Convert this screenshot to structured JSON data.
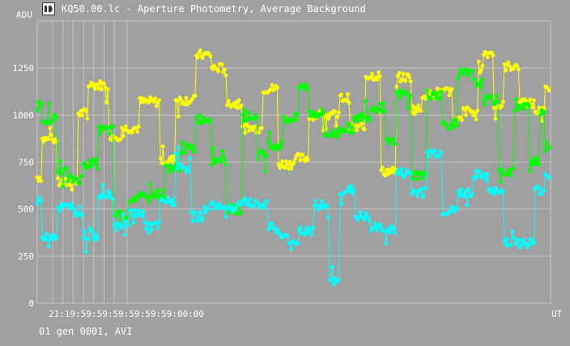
{
  "window": {
    "title": "KQ50.00.lc - Aperture Photometry, Average Background",
    "footer": "01 gen 0001, AVI"
  },
  "chart_data": {
    "type": "line",
    "title": "KQ50.00.lc - Aperture Photometry, Average Background",
    "ylabel": "ADU",
    "xlabel": "UT",
    "ylim": [
      0,
      1500
    ],
    "yticks": [
      0,
      250,
      500,
      750,
      1000,
      1250
    ],
    "x_tick_labels_overlapping": "21:19:59:59:59:59:59:59:00:00",
    "grid": true,
    "background": "#a0a0a0",
    "series": [
      {
        "color": "#ffff00",
        "segments": [
          [
            0,
            670
          ],
          [
            1,
            870
          ],
          [
            4,
            640
          ],
          [
            8,
            1010
          ],
          [
            10,
            1160
          ],
          [
            14,
            890
          ],
          [
            17,
            930
          ],
          [
            20,
            1070
          ],
          [
            24,
            760
          ],
          [
            27,
            1080
          ],
          [
            31,
            1320
          ],
          [
            34,
            1250
          ],
          [
            37,
            1060
          ],
          [
            40,
            930
          ],
          [
            44,
            1140
          ],
          [
            47,
            740
          ],
          [
            50,
            770
          ],
          [
            53,
            1000
          ],
          [
            56,
            1000
          ],
          [
            59,
            1090
          ],
          [
            61,
            930
          ],
          [
            64,
            1210
          ],
          [
            67,
            700
          ],
          [
            70,
            1200
          ],
          [
            73,
            1030
          ],
          [
            75,
            1110
          ],
          [
            78,
            1120
          ],
          [
            81,
            970
          ],
          [
            83,
            1020
          ],
          [
            85,
            1000
          ],
          [
            86,
            1250
          ],
          [
            87,
            1330
          ],
          [
            89,
            1050
          ],
          [
            91,
            1260
          ],
          [
            94,
            1060
          ],
          [
            97,
            1020
          ],
          [
            99,
            1130
          ]
        ]
      },
      {
        "color": "#00ff00",
        "segments": [
          [
            0,
            1050
          ],
          [
            1,
            980
          ],
          [
            4,
            700
          ],
          [
            6,
            660
          ],
          [
            9,
            740
          ],
          [
            12,
            920
          ],
          [
            15,
            470
          ],
          [
            18,
            560
          ],
          [
            22,
            580
          ],
          [
            25,
            720
          ],
          [
            28,
            820
          ],
          [
            31,
            980
          ],
          [
            34,
            760
          ],
          [
            37,
            500
          ],
          [
            40,
            990
          ],
          [
            43,
            790
          ],
          [
            45,
            840
          ],
          [
            48,
            980
          ],
          [
            51,
            1150
          ],
          [
            53,
            1010
          ],
          [
            56,
            900
          ],
          [
            59,
            930
          ],
          [
            62,
            990
          ],
          [
            65,
            1040
          ],
          [
            68,
            850
          ],
          [
            70,
            1110
          ],
          [
            73,
            680
          ],
          [
            76,
            1110
          ],
          [
            79,
            950
          ],
          [
            82,
            1220
          ],
          [
            85,
            1170
          ],
          [
            87,
            1080
          ],
          [
            90,
            700
          ],
          [
            93,
            1040
          ],
          [
            96,
            760
          ],
          [
            98,
            1020
          ],
          [
            99,
            830
          ]
        ]
      },
      {
        "color": "#00ffff",
        "segments": [
          [
            0,
            540
          ],
          [
            1,
            360
          ],
          [
            4,
            510
          ],
          [
            7,
            490
          ],
          [
            9,
            360
          ],
          [
            12,
            580
          ],
          [
            15,
            410
          ],
          [
            18,
            480
          ],
          [
            21,
            410
          ],
          [
            24,
            540
          ],
          [
            27,
            720
          ],
          [
            30,
            460
          ],
          [
            33,
            520
          ],
          [
            36,
            500
          ],
          [
            39,
            540
          ],
          [
            42,
            520
          ],
          [
            45,
            400
          ],
          [
            47,
            360
          ],
          [
            49,
            310
          ],
          [
            51,
            380
          ],
          [
            54,
            520
          ],
          [
            57,
            110
          ],
          [
            59,
            600
          ],
          [
            62,
            460
          ],
          [
            65,
            400
          ],
          [
            68,
            390
          ],
          [
            70,
            690
          ],
          [
            73,
            590
          ],
          [
            76,
            800
          ],
          [
            79,
            490
          ],
          [
            82,
            590
          ],
          [
            85,
            680
          ],
          [
            88,
            590
          ],
          [
            91,
            330
          ],
          [
            94,
            320
          ],
          [
            97,
            600
          ],
          [
            99,
            690
          ]
        ]
      }
    ]
  }
}
